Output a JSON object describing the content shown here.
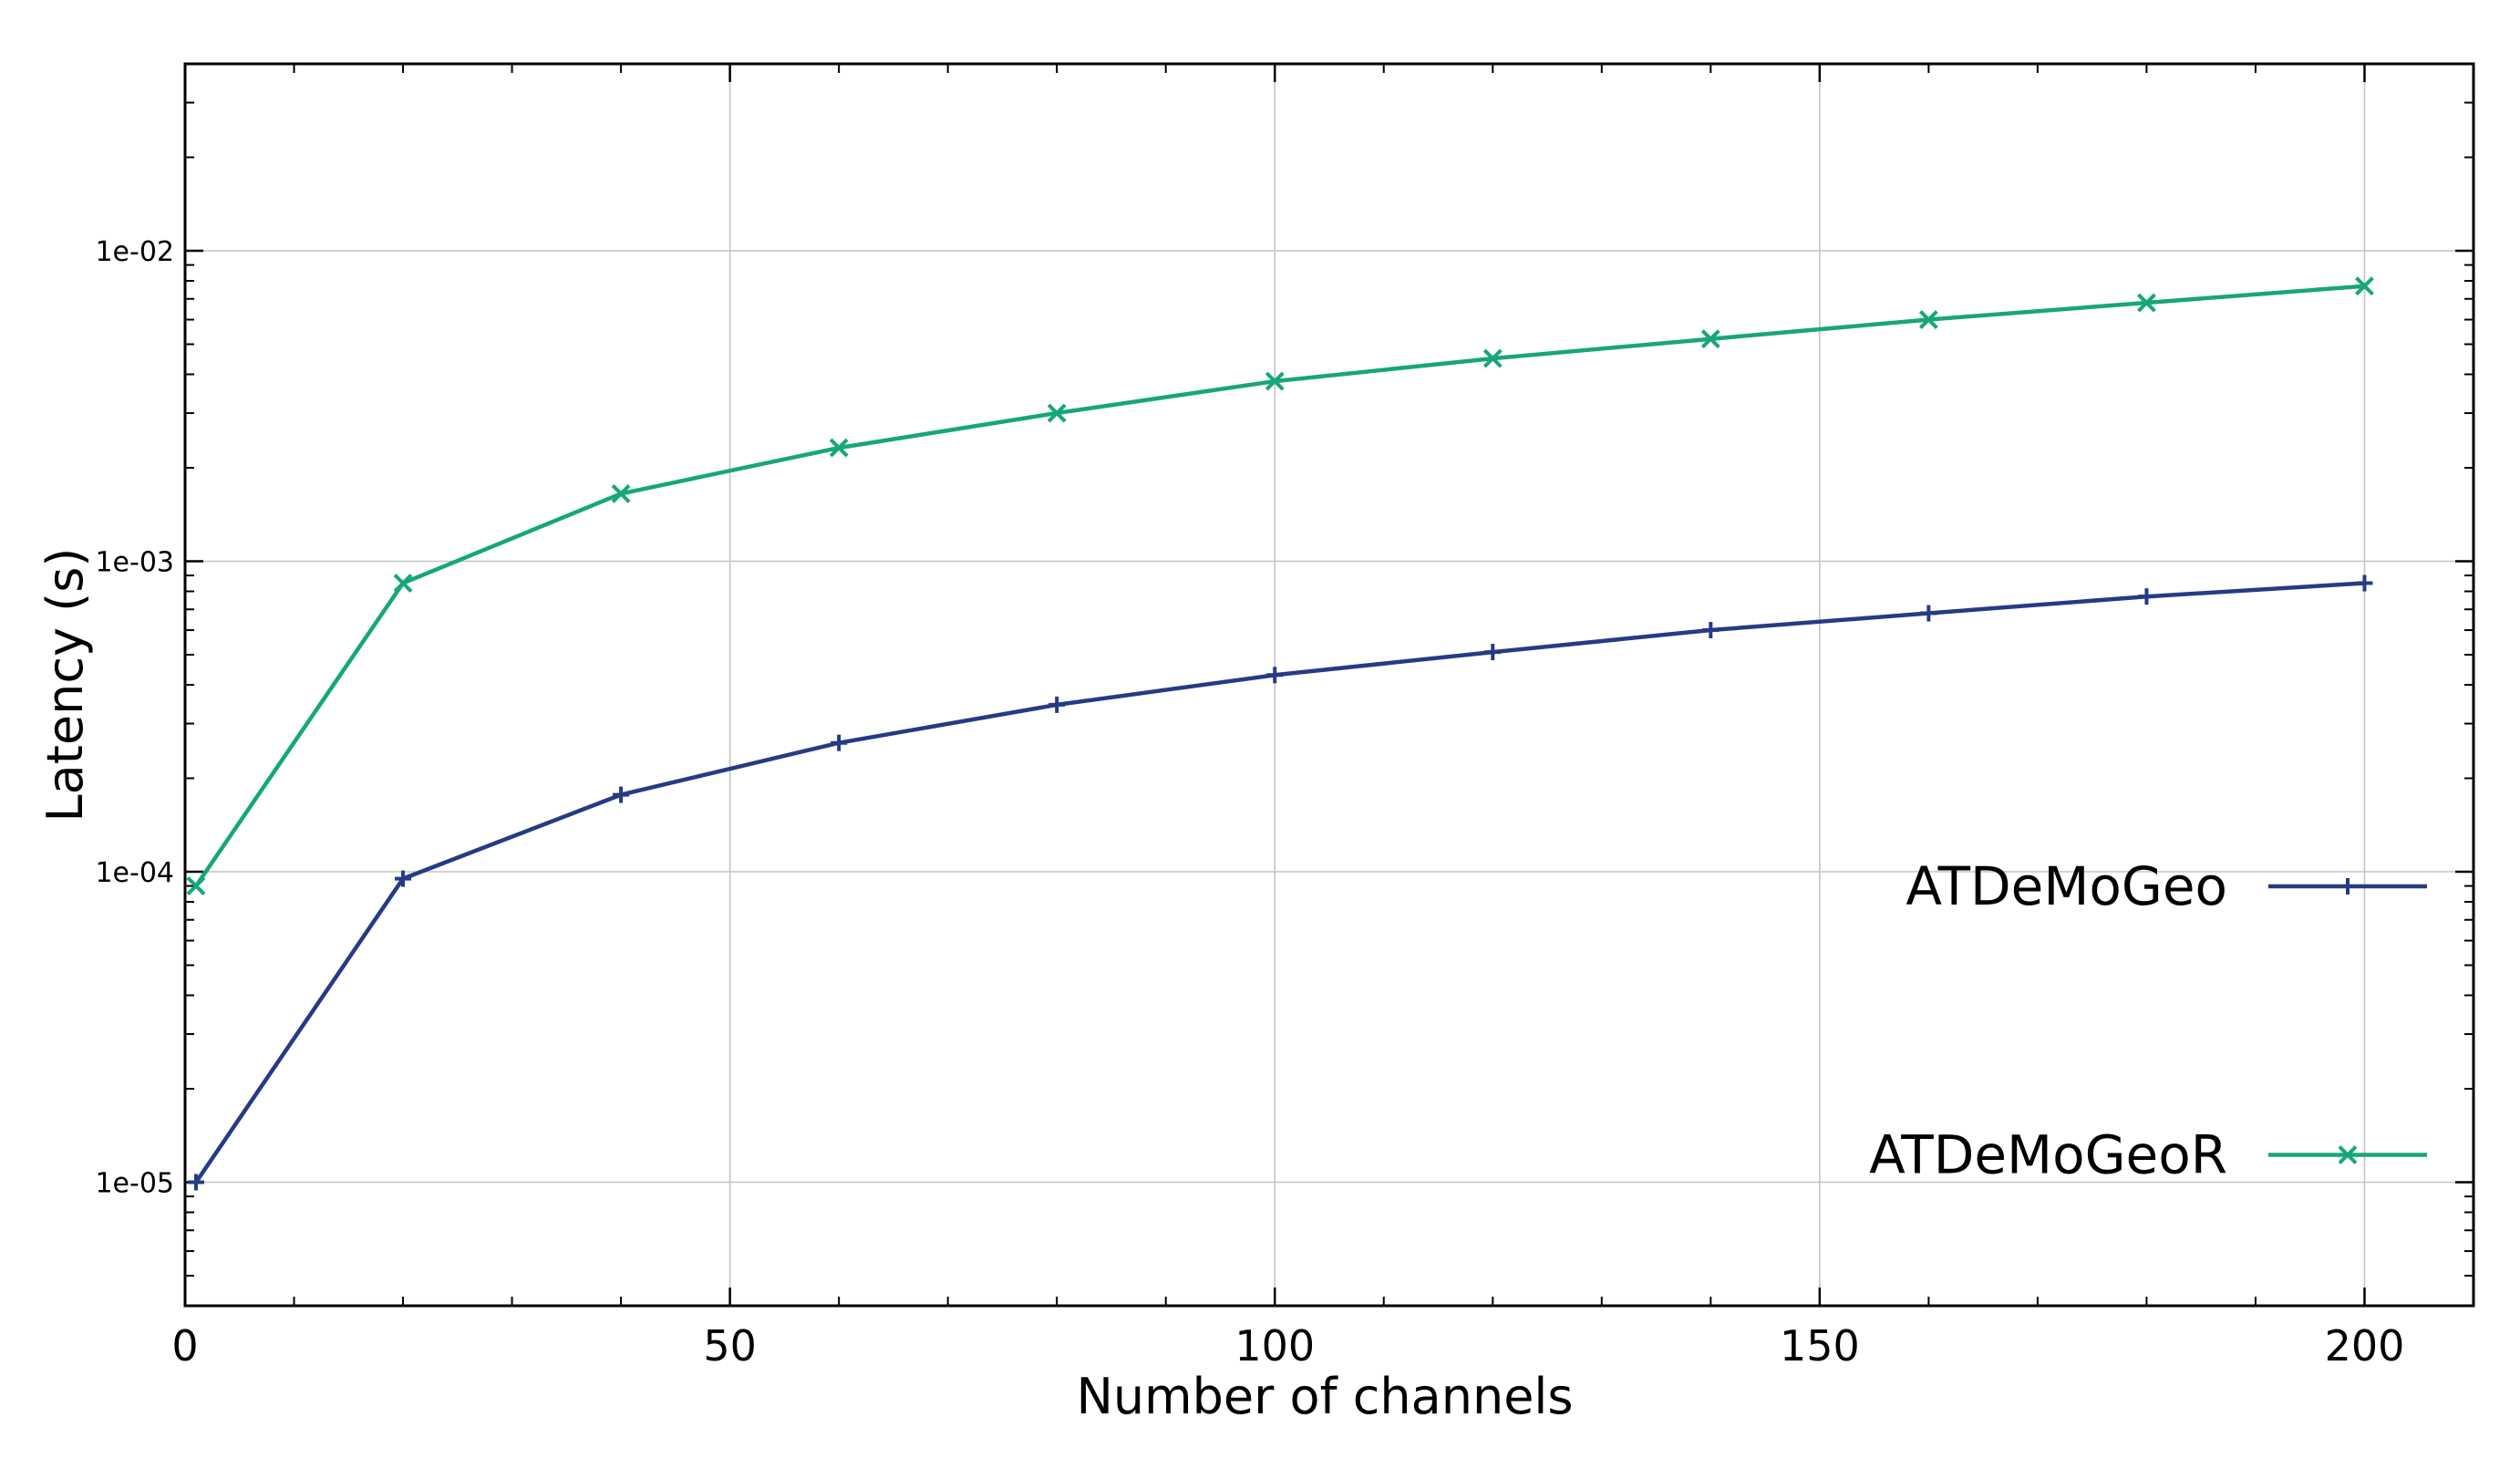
{
  "chart_data": {
    "type": "line",
    "xlabel": "Number of channels",
    "ylabel": "Latency (s)",
    "xlim": [
      0,
      210
    ],
    "ylim": [
      4e-06,
      0.04
    ],
    "y_scale": "log",
    "grid": true,
    "legend_position": "right",
    "x_ticks": [
      "0",
      "50",
      "100",
      "150",
      "200"
    ],
    "y_ticks": [
      "1e-05",
      "1e-04",
      "1e-03",
      "1e-02"
    ],
    "x": [
      1,
      20,
      40,
      60,
      80,
      100,
      120,
      140,
      160,
      180,
      200
    ],
    "series": [
      {
        "name": "ATDeMoGeo",
        "color": "#253b85",
        "marker": "plus",
        "values": [
          1e-05,
          9.5e-05,
          0.000177,
          0.00026,
          0.000345,
          0.00043,
          0.00051,
          0.0006,
          0.00068,
          0.00077,
          0.00085
        ]
      },
      {
        "name": "ATDeMoGeoR",
        "color": "#17a67b",
        "marker": "x",
        "values": [
          9e-05,
          0.00085,
          0.00165,
          0.00232,
          0.003,
          0.0038,
          0.0045,
          0.0052,
          0.006,
          0.0068,
          0.0077
        ]
      }
    ]
  }
}
